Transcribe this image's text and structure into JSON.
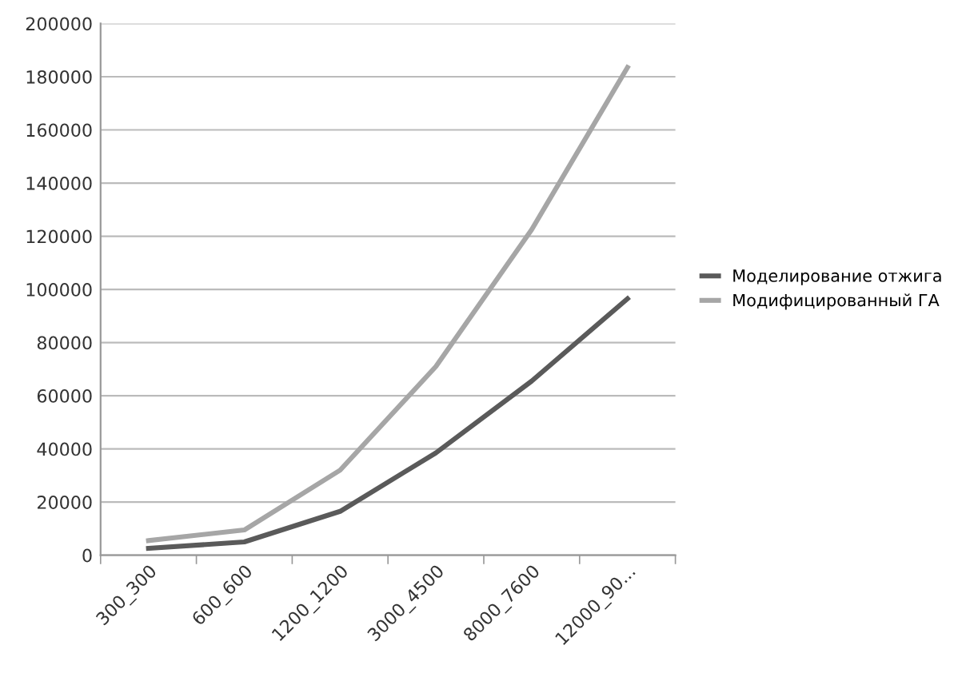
{
  "chart_data": {
    "type": "line",
    "categories": [
      "300_300",
      "600_600",
      "1200_1200",
      "3000_4500",
      "8000_7600",
      "12000_90..."
    ],
    "series": [
      {
        "name": "Моделирование отжига",
        "color": "#5a5a5a",
        "values": [
          2600,
          5000,
          16500,
          38500,
          65500,
          96500
        ]
      },
      {
        "name": "Модифицированный ГА",
        "color": "#a6a6a6",
        "values": [
          5500,
          9500,
          32000,
          71000,
          122500,
          183500
        ]
      }
    ],
    "ylim": [
      0,
      200000
    ],
    "yticks": [
      0,
      20000,
      40000,
      60000,
      80000,
      100000,
      120000,
      140000,
      160000,
      180000,
      200000
    ],
    "grid": "y",
    "legend": "right",
    "marker": "none",
    "line_style": "solid"
  }
}
